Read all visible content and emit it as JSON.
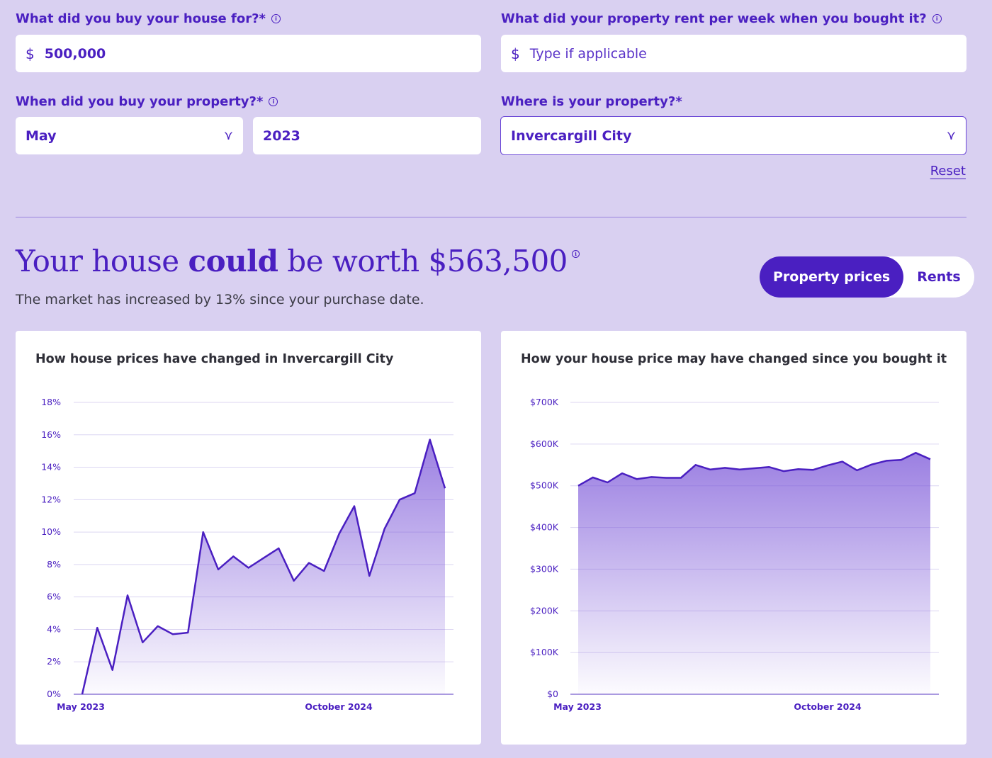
{
  "form": {
    "purchase_price": {
      "label": "What did you buy your house for?*",
      "currency": "$",
      "value": "500,000"
    },
    "weekly_rent": {
      "label": "What did your property rent per week when you bought it?",
      "currency": "$",
      "placeholder": "Type if applicable"
    },
    "purchase_date": {
      "label": "When did you buy your property?*",
      "month": "May",
      "year": "2023"
    },
    "location": {
      "label": "Where is your property?*",
      "value": "Invercargill City"
    },
    "reset_label": "Reset"
  },
  "result": {
    "prefix": "Your house ",
    "emphasis": "could",
    "suffix": " be worth $563,500",
    "subtext": "The market has increased by 13% since your purchase date."
  },
  "toggle": {
    "active": "Property prices",
    "inactive": "Rents"
  },
  "colors": {
    "accent": "#4a1fc1",
    "background": "#d9d0f1",
    "grid": "#dcd6f2"
  },
  "icons": {
    "info": "info-icon",
    "chevron": "chevron-down-icon",
    "currency": "dollar-icon"
  },
  "chart_data": [
    {
      "type": "area",
      "title": "How house prices have changed in Invercargill City",
      "x_tick_labels": [
        "May 2023",
        "October 2024"
      ],
      "y_tick_labels": [
        "0%",
        "2%",
        "4%",
        "6%",
        "8%",
        "10%",
        "12%",
        "14%",
        "16%",
        "18%"
      ],
      "ylim": [
        0,
        18
      ],
      "values": [
        0,
        4.1,
        1.5,
        6.1,
        3.2,
        4.2,
        3.7,
        3.8,
        10.0,
        7.7,
        8.5,
        7.8,
        8.4,
        9.0,
        7.0,
        8.1,
        7.6,
        9.9,
        11.6,
        7.3,
        10.2,
        12.0,
        12.4,
        15.7,
        12.7
      ],
      "grid": true
    },
    {
      "type": "area",
      "title": "How your house price may have changed since you bought it",
      "x_tick_labels": [
        "May 2023",
        "October 2024"
      ],
      "y_tick_labels": [
        "$0",
        "$100K",
        "$200K",
        "$300K",
        "$400K",
        "$500K",
        "$600K",
        "$700K"
      ],
      "ylim": [
        0,
        700000
      ],
      "values": [
        500000,
        520000,
        508000,
        530000,
        516000,
        521000,
        519000,
        519000,
        550000,
        539000,
        543000,
        539000,
        542000,
        545000,
        535000,
        540000,
        538000,
        549000,
        558000,
        537000,
        551000,
        560000,
        562000,
        579000,
        563500
      ],
      "grid": true
    }
  ]
}
